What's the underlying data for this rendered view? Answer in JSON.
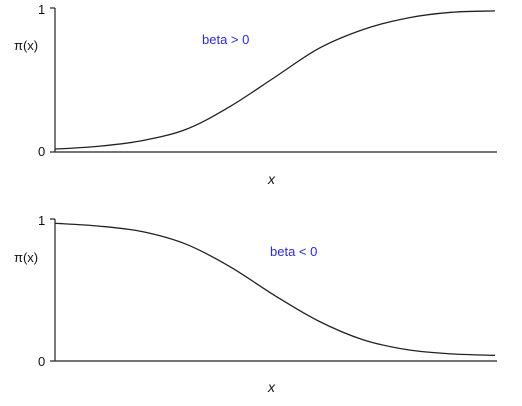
{
  "chart_data": [
    {
      "type": "line",
      "ylabel": "π(x)",
      "xlabel": "x",
      "ylim": [
        0,
        1
      ],
      "yticks": [
        "0",
        "1"
      ],
      "annotation": "beta > 0",
      "annotation_color": "#2b2bd6",
      "series": [
        {
          "x": [
            0,
            1,
            2,
            3,
            4,
            5,
            6,
            7,
            8,
            9,
            10
          ],
          "values": [
            0.02,
            0.04,
            0.08,
            0.16,
            0.32,
            0.52,
            0.72,
            0.85,
            0.93,
            0.97,
            0.98
          ]
        }
      ]
    },
    {
      "type": "line",
      "ylabel": "π(x)",
      "xlabel": "x",
      "ylim": [
        0,
        1
      ],
      "yticks": [
        "0",
        "1"
      ],
      "annotation": "beta < 0",
      "annotation_color": "#2b2bd6",
      "series": [
        {
          "x": [
            0,
            1,
            2,
            3,
            4,
            5,
            6,
            7,
            8,
            9,
            10
          ],
          "values": [
            0.97,
            0.95,
            0.91,
            0.82,
            0.66,
            0.46,
            0.28,
            0.15,
            0.08,
            0.05,
            0.04
          ]
        }
      ]
    }
  ]
}
